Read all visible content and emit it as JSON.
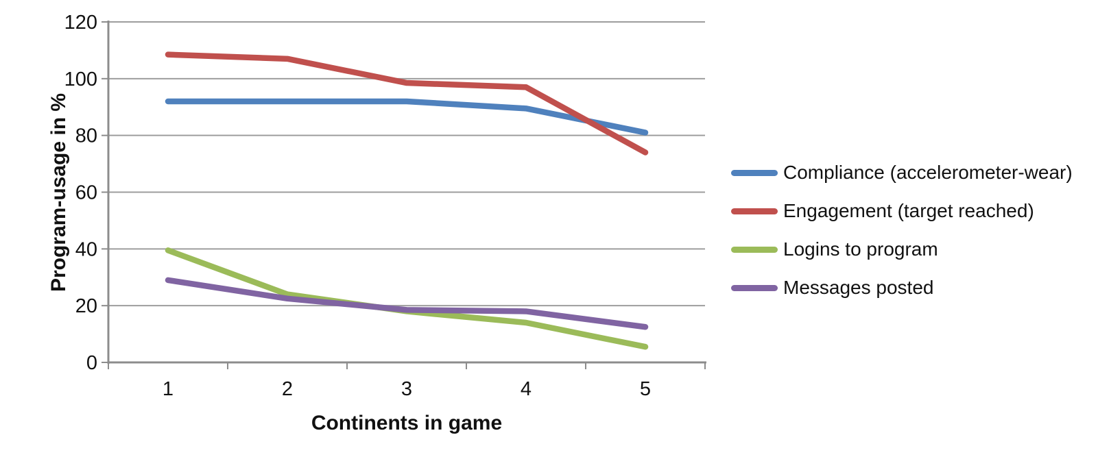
{
  "chart_data": {
    "type": "line",
    "title": "",
    "xlabel": "Continents in game",
    "ylabel": "Program-usage in %",
    "x": [
      1,
      2,
      3,
      4,
      5
    ],
    "x_tick_labels": [
      "1",
      "2",
      "3",
      "4",
      "5"
    ],
    "y_tick_labels": [
      "0",
      "20",
      "40",
      "60",
      "80",
      "100",
      "120"
    ],
    "ylim": [
      0,
      120
    ],
    "ytick_step": 20,
    "grid": true,
    "legend_position": "right",
    "series": [
      {
        "name": "Compliance (accelerometer-wear)",
        "color": "#4F81BD",
        "values": [
          92,
          92,
          92,
          89.5,
          81
        ]
      },
      {
        "name": "Engagement (target reached)",
        "color": "#C0504D",
        "values": [
          108.5,
          107,
          98.5,
          97,
          74
        ]
      },
      {
        "name": "Logins to program",
        "color": "#9BBB59",
        "values": [
          39.5,
          24,
          18,
          14,
          5.5
        ]
      },
      {
        "name": "Messages posted",
        "color": "#8064A2",
        "values": [
          29,
          22.5,
          18.5,
          18,
          12.5
        ]
      }
    ],
    "colors": {
      "grid": "#9D9D9D",
      "axis": "#8C8C8C",
      "text": "#111111"
    }
  }
}
